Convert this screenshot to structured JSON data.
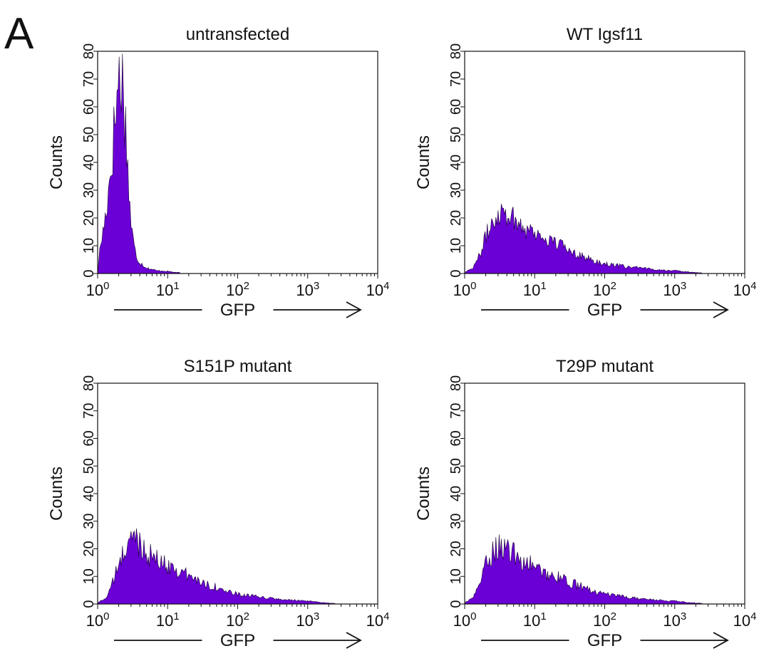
{
  "panel_label": "A",
  "chart_data": [
    {
      "type": "area",
      "title": "untransfected",
      "xlabel": "GFP",
      "ylabel": "Counts",
      "xscale": "log",
      "xlim": [
        1,
        10000
      ],
      "ylim": [
        0,
        80
      ],
      "yticks": [
        "0",
        "10",
        "20",
        "30",
        "40",
        "50",
        "60",
        "70",
        "80"
      ],
      "xticks": [
        {
          "base": "10",
          "exp": "0"
        },
        {
          "base": "10",
          "exp": "1"
        },
        {
          "base": "10",
          "exp": "2"
        },
        {
          "base": "10",
          "exp": "3"
        },
        {
          "base": "10",
          "exp": "4"
        }
      ],
      "fill_color": "#6b00d6",
      "series": [
        {
          "x": [
            1.0,
            1.1,
            1.25,
            1.4,
            1.6,
            1.8,
            2.0,
            2.2,
            2.4,
            2.6,
            2.8,
            3.0,
            3.3,
            3.6,
            4.0,
            4.5,
            5.0,
            6.0,
            7.0,
            8.0,
            10.0,
            12.0,
            15.0
          ],
          "y": [
            2,
            10,
            18,
            28,
            42,
            58,
            70,
            72,
            62,
            46,
            30,
            18,
            10,
            6,
            4,
            3,
            2,
            1.5,
            1,
            1,
            0.8,
            0.5,
            0.3
          ]
        }
      ]
    },
    {
      "type": "area",
      "title": "WT Igsf11",
      "xlabel": "GFP",
      "ylabel": "Counts",
      "xscale": "log",
      "xlim": [
        1,
        10000
      ],
      "ylim": [
        0,
        80
      ],
      "yticks": [
        "0",
        "10",
        "20",
        "30",
        "40",
        "50",
        "60",
        "70",
        "80"
      ],
      "xticks": [
        {
          "base": "10",
          "exp": "0"
        },
        {
          "base": "10",
          "exp": "1"
        },
        {
          "base": "10",
          "exp": "2"
        },
        {
          "base": "10",
          "exp": "3"
        },
        {
          "base": "10",
          "exp": "4"
        }
      ],
      "fill_color": "#6b00d6",
      "series": [
        {
          "x": [
            1.0,
            1.3,
            1.6,
            2.0,
            2.5,
            3.0,
            3.5,
            4.0,
            5.0,
            6.0,
            8.0,
            10.0,
            15.0,
            20.0,
            30.0,
            50.0,
            80.0,
            100.0,
            200.0,
            300.0,
            500.0,
            1000.0,
            1500.0,
            2500.0
          ],
          "y": [
            0.5,
            2,
            6,
            13,
            19,
            22,
            23,
            22,
            20,
            18,
            16,
            15,
            12,
            11,
            9,
            6,
            4,
            3.5,
            2.5,
            2,
            1.5,
            1,
            0.6,
            0.2
          ]
        }
      ]
    },
    {
      "type": "area",
      "title": "S151P mutant",
      "xlabel": "GFP",
      "ylabel": "Counts",
      "xscale": "log",
      "xlim": [
        1,
        10000
      ],
      "ylim": [
        0,
        80
      ],
      "yticks": [
        "0",
        "10",
        "20",
        "30",
        "40",
        "50",
        "60",
        "70",
        "80"
      ],
      "xticks": [
        {
          "base": "10",
          "exp": "0"
        },
        {
          "base": "10",
          "exp": "1"
        },
        {
          "base": "10",
          "exp": "2"
        },
        {
          "base": "10",
          "exp": "3"
        },
        {
          "base": "10",
          "exp": "4"
        }
      ],
      "fill_color": "#6b00d6",
      "series": [
        {
          "x": [
            1.0,
            1.3,
            1.6,
            2.0,
            2.5,
            3.0,
            3.5,
            4.0,
            5.0,
            6.0,
            8.0,
            10.0,
            15.0,
            20.0,
            30.0,
            50.0,
            80.0,
            100.0,
            200.0,
            300.0,
            500.0,
            1000.0,
            1500.0,
            2500.0
          ],
          "y": [
            0.5,
            2,
            7,
            14,
            20,
            23,
            24,
            22,
            19,
            17,
            15,
            14,
            12,
            10,
            8,
            6,
            4,
            3.5,
            2.5,
            2,
            1.5,
            1,
            0.6,
            0.2
          ]
        }
      ]
    },
    {
      "type": "area",
      "title": "T29P mutant",
      "xlabel": "GFP",
      "ylabel": "Counts",
      "xscale": "log",
      "xlim": [
        1,
        10000
      ],
      "ylim": [
        0,
        80
      ],
      "yticks": [
        "0",
        "10",
        "20",
        "30",
        "40",
        "50",
        "60",
        "70",
        "80"
      ],
      "xticks": [
        {
          "base": "10",
          "exp": "0"
        },
        {
          "base": "10",
          "exp": "1"
        },
        {
          "base": "10",
          "exp": "2"
        },
        {
          "base": "10",
          "exp": "3"
        },
        {
          "base": "10",
          "exp": "4"
        }
      ],
      "fill_color": "#6b00d6",
      "series": [
        {
          "x": [
            1.0,
            1.3,
            1.6,
            2.0,
            2.5,
            3.0,
            3.5,
            4.0,
            5.0,
            6.0,
            8.0,
            10.0,
            15.0,
            20.0,
            30.0,
            50.0,
            80.0,
            100.0,
            200.0,
            300.0,
            500.0,
            1000.0,
            1500.0,
            2500.0
          ],
          "y": [
            0.5,
            2,
            7,
            14,
            19,
            21,
            21,
            20,
            18,
            16,
            15,
            13,
            11,
            10,
            8,
            6,
            4,
            3.5,
            2.5,
            2,
            1.5,
            1,
            0.6,
            0.2
          ]
        }
      ]
    }
  ]
}
